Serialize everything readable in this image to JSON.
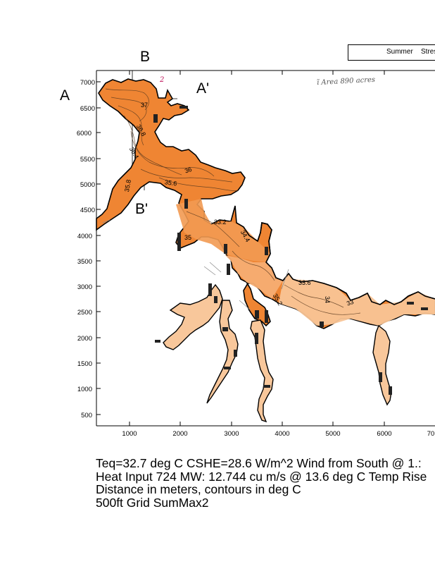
{
  "header": {
    "summer": "Summer",
    "stress": "Stres"
  },
  "sections": {
    "a": "A",
    "a_prime": "A'",
    "b": "B",
    "b_prime": "B'"
  },
  "handwritten_note": "ĩ Area 890 acres",
  "handwritten_mark": "2",
  "axes": {
    "y_ticks": [
      "7000",
      "6500",
      "6000",
      "5500",
      "5000",
      "4500",
      "4000",
      "3500",
      "3000",
      "2500",
      "2000",
      "1500",
      "1000",
      "500"
    ],
    "x_ticks": [
      "1000",
      "2000",
      "3000",
      "4000",
      "5000",
      "6000",
      "70"
    ]
  },
  "contour_labels": [
    "37",
    "36.8",
    "36.4",
    "36",
    "35.6",
    "35",
    "33.2",
    "34.4",
    "33",
    "33.6",
    "34",
    "35.2",
    "35.8"
  ],
  "colors": {
    "hot": "#f0883a",
    "warm": "#f6a96a",
    "mid": "#f8c08f",
    "cool": "#fad2ad",
    "outline": "#000000"
  },
  "caption": {
    "line1": "Teq=32.7 deg C  CSHE=28.6 W/m^2 Wind from South @ 1.:",
    "line2": "Heat Input 724 MW: 12.744 cu m/s @ 13.6 deg C Temp Rise",
    "line3": "Distance in meters, contours in deg C",
    "line4": "500ft Grid  SumMax2"
  }
}
